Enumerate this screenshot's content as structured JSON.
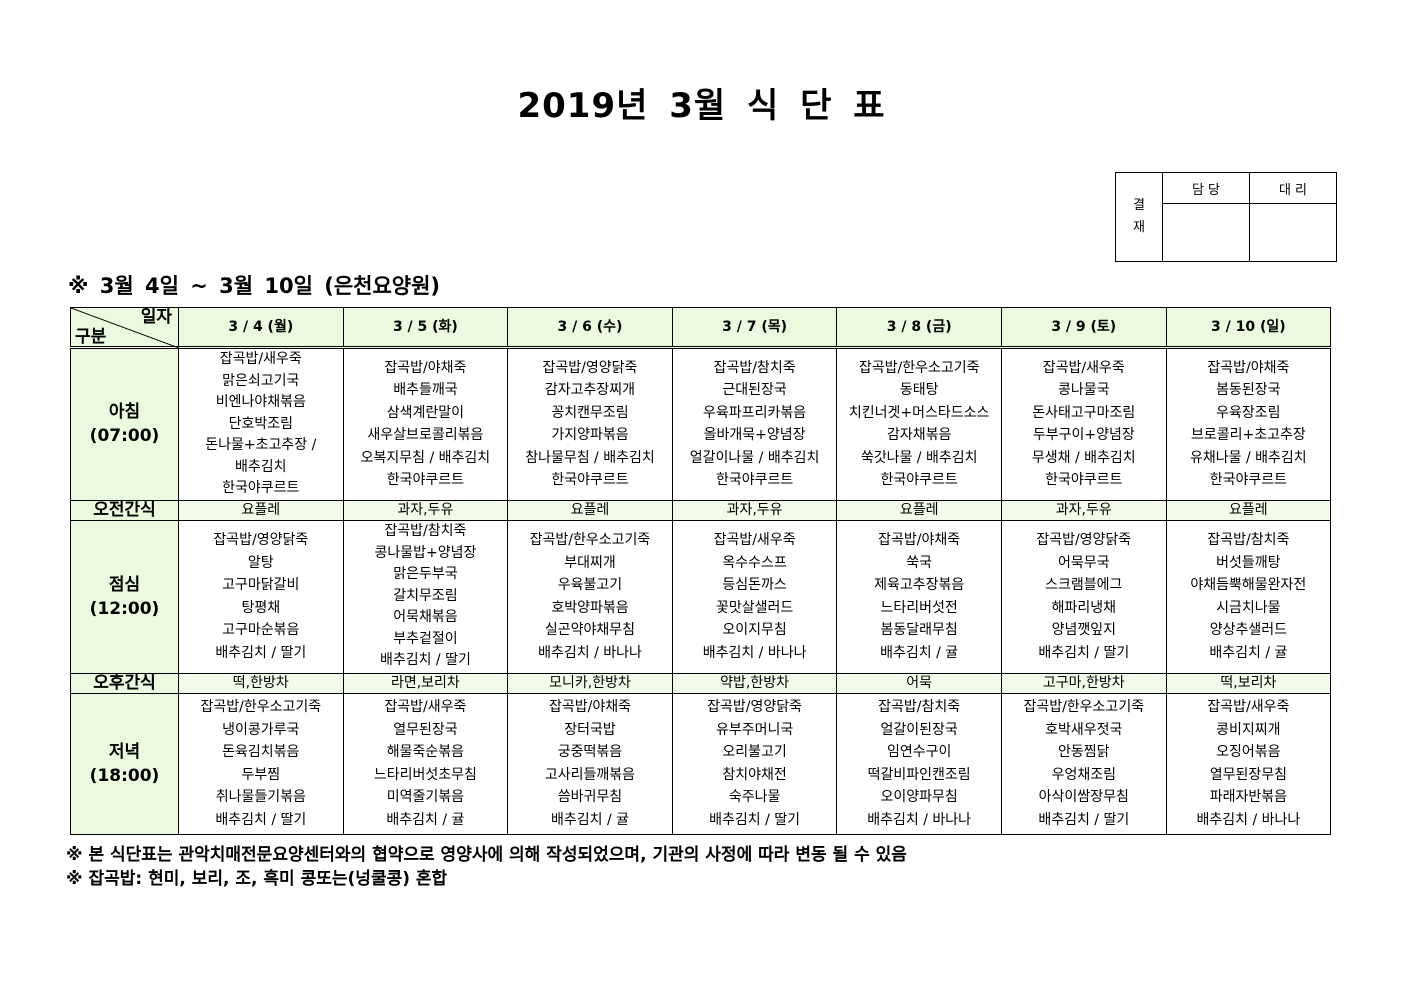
{
  "title": "2019년 3월 식 단 표",
  "approval": {
    "label": "결\n재",
    "cols": [
      "담 당",
      "대 리"
    ]
  },
  "subtitle": "※ 3월 4일 ~ 3월 10일 (은천요양원)",
  "table": {
    "corner_top": "일자",
    "corner_bottom": "구분",
    "days": [
      "3 / 4 (월)",
      "3 / 5 (화)",
      "3 / 6 (수)",
      "3 / 7 (목)",
      "3 / 8 (금)",
      "3 / 9 (토)",
      "3 / 10 (일)"
    ],
    "rows": [
      {
        "label": "아침",
        "time": "(07:00)",
        "type": "meal",
        "cells": [
          [
            "잡곡밥/새우죽",
            "맑은쇠고기국",
            "비엔나야채볶음",
            "단호박조림",
            "돈나물+초고추장 /",
            "배추김치",
            "한국야쿠르트"
          ],
          [
            "잡곡밥/야채죽",
            "배추들깨국",
            "삼색계란말이",
            "새우살브로콜리볶음",
            "오복지무침 / 배추김치",
            "한국야쿠르트"
          ],
          [
            "잡곡밥/영양닭죽",
            "감자고추장찌개",
            "꽁치캔무조림",
            "가지양파볶음",
            "참나물무침 / 배추김치",
            "한국야쿠르트"
          ],
          [
            "잡곡밥/참치죽",
            "근대된장국",
            "우육파프리카볶음",
            "올바개묵+양념장",
            "얼갈이나물 / 배추김치",
            "한국야쿠르트"
          ],
          [
            "잡곡밥/한우소고기죽",
            "동태탕",
            "치킨너겟+머스타드소스",
            "감자채볶음",
            "쑥갓나물 / 배추김치",
            "한국야쿠르트"
          ],
          [
            "잡곡밥/새우죽",
            "콩나물국",
            "돈사태고구마조림",
            "두부구이+양념장",
            "무생채 / 배추김치",
            "한국야쿠르트"
          ],
          [
            "잡곡밥/야채죽",
            "봄동된장국",
            "우육장조림",
            "브로콜리+초고추장",
            "유채나물 / 배추김치",
            "한국야쿠르트"
          ]
        ]
      },
      {
        "label": "오전간식",
        "type": "snack",
        "cells": [
          "요플레",
          "과자,두유",
          "요플레",
          "과자,두유",
          "요플레",
          "과자,두유",
          "요플레"
        ]
      },
      {
        "label": "점심",
        "time": "(12:00)",
        "type": "meal",
        "cells": [
          [
            "잡곡밥/영양닭죽",
            "알탕",
            "고구마닭갈비",
            "탕평채",
            "고구마순볶음",
            "배추김치 / 딸기"
          ],
          [
            "잡곡밥/참치죽",
            "콩나물밥+양념장",
            "맑은두부국",
            "갈치무조림",
            "어묵채볶음",
            "부추겉절이",
            "배추김치 / 딸기"
          ],
          [
            "잡곡밥/한우소고기죽",
            "부대찌개",
            "우육불고기",
            "호박양파볶음",
            "실곤약야채무침",
            "배추김치 / 바나나"
          ],
          [
            "잡곡밥/새우죽",
            "옥수수스프",
            "등심돈까스",
            "꽃맛살샐러드",
            "오이지무침",
            "배추김치 / 바나나"
          ],
          [
            "잡곡밥/야채죽",
            "쑥국",
            "제육고추장볶음",
            "느타리버섯전",
            "봄동달래무침",
            "배추김치 / 귤"
          ],
          [
            "잡곡밥/영양닭죽",
            "어묵무국",
            "스크램블에그",
            "해파리냉채",
            "양념깻잎지",
            "배추김치 / 딸기"
          ],
          [
            "잡곡밥/참치죽",
            "버섯들깨탕",
            "야채듬뿍해물완자전",
            "시금치나물",
            "양상추샐러드",
            "배추김치 / 귤"
          ]
        ]
      },
      {
        "label": "오후간식",
        "type": "snack",
        "cells": [
          "떡,한방차",
          "라면,보리차",
          "모니카,한방차",
          "약밥,한방차",
          "어묵",
          "고구마,한방차",
          "떡,보리차"
        ]
      },
      {
        "label": "저녁",
        "time": "(18:00)",
        "type": "meal",
        "cells": [
          [
            "잡곡밥/한우소고기죽",
            "냉이콩가루국",
            "돈육김치볶음",
            "두부찜",
            "취나물들기볶음",
            "배추김치 / 딸기"
          ],
          [
            "잡곡밥/새우죽",
            "열무된장국",
            "해물죽순볶음",
            "느타리버섯초무침",
            "미역줄기볶음",
            "배추김치 / 귤"
          ],
          [
            "잡곡밥/야채죽",
            "장터국밥",
            "궁중떡볶음",
            "고사리들깨볶음",
            "씀바귀무침",
            "배추김치 / 귤"
          ],
          [
            "잡곡밥/영양닭죽",
            "유부주머니국",
            "오리불고기",
            "참치야채전",
            "숙주나물",
            "배추김치 / 딸기"
          ],
          [
            "잡곡밥/참치죽",
            "얼갈이된장국",
            "임연수구이",
            "떡갈비파인캔조림",
            "오이양파무침",
            "배추김치 / 바나나"
          ],
          [
            "잡곡밥/한우소고기죽",
            "호박새우젓국",
            "안동찜닭",
            "우엉채조림",
            "아삭이쌈장무침",
            "배추김치 / 딸기"
          ],
          [
            "잡곡밥/새우죽",
            "콩비지찌개",
            "오징어볶음",
            "열무된장무침",
            "파래자반볶음",
            "배추김치 / 바나나"
          ]
        ]
      }
    ]
  },
  "notes": [
    "※ 본 식단표는 관악치매전문요양센터와의 협약으로 영양사에 의해 작성되었으며, 기관의 사정에 따라 변동 될 수 있음",
    "※ 잡곡밥: 현미, 보리, 조, 흑미 콩또는(넝쿨콩) 혼합"
  ],
  "colors": {
    "header_bg": "#ebf9df",
    "snack_bg": "#f2fbea"
  }
}
